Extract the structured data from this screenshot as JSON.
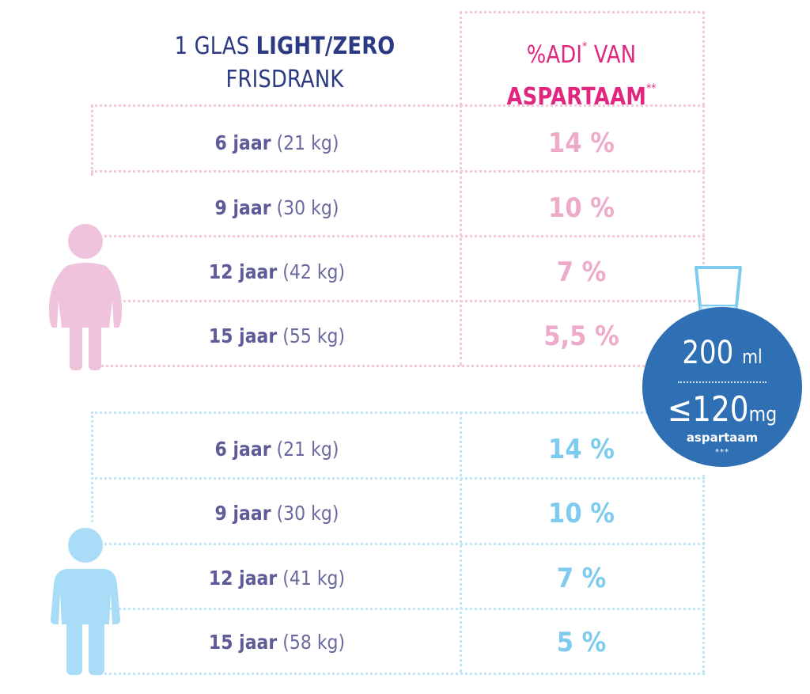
{
  "header": {
    "left_line1_prefix": "1 GLAS ",
    "left_line1_bold": "LIGHT/ZERO",
    "left_line2": "FRISDRANK",
    "right_line1": "%ADI",
    "right_line1_sup": "*",
    "right_line1_rest": " VAN",
    "right_line2": "ASPARTAAM",
    "right_line2_sup": "**"
  },
  "girl_rows": [
    {
      "age": "6 jaar",
      "weight": "(21 kg)",
      "pct": "14 %"
    },
    {
      "age": "9 jaar",
      "weight": "(30 kg)",
      "pct": "10 %"
    },
    {
      "age": "12 jaar",
      "weight": "(42 kg)",
      "pct": "7 %"
    },
    {
      "age": "15 jaar",
      "weight": "(55 kg)",
      "pct": "5,5 %"
    }
  ],
  "boy_rows": [
    {
      "age": "6 jaar",
      "weight": "(21 kg)",
      "pct": "14 %"
    },
    {
      "age": "9 jaar",
      "weight": "(30 kg)",
      "pct": "10 %"
    },
    {
      "age": "12 jaar",
      "weight": "(41 kg)",
      "pct": "7 %"
    },
    {
      "age": "15 jaar",
      "weight": "(58 kg)",
      "pct": "5 %"
    }
  ],
  "badge": {
    "volume": "200",
    "volume_unit": "ml",
    "amount": "≤120",
    "amount_unit": "mg",
    "label": "aspartaam",
    "footnote": "***"
  },
  "colors": {
    "navy": "#2b3a82",
    "magenta": "#e0267f",
    "pink": "#eeaac9",
    "light_blue": "#7ecbf0",
    "badge_blue": "#2f6fb4",
    "girl": "#f0c3dc",
    "boy": "#a9dcf6"
  },
  "icons": [
    "girl-icon",
    "boy-icon",
    "glass-icon"
  ]
}
